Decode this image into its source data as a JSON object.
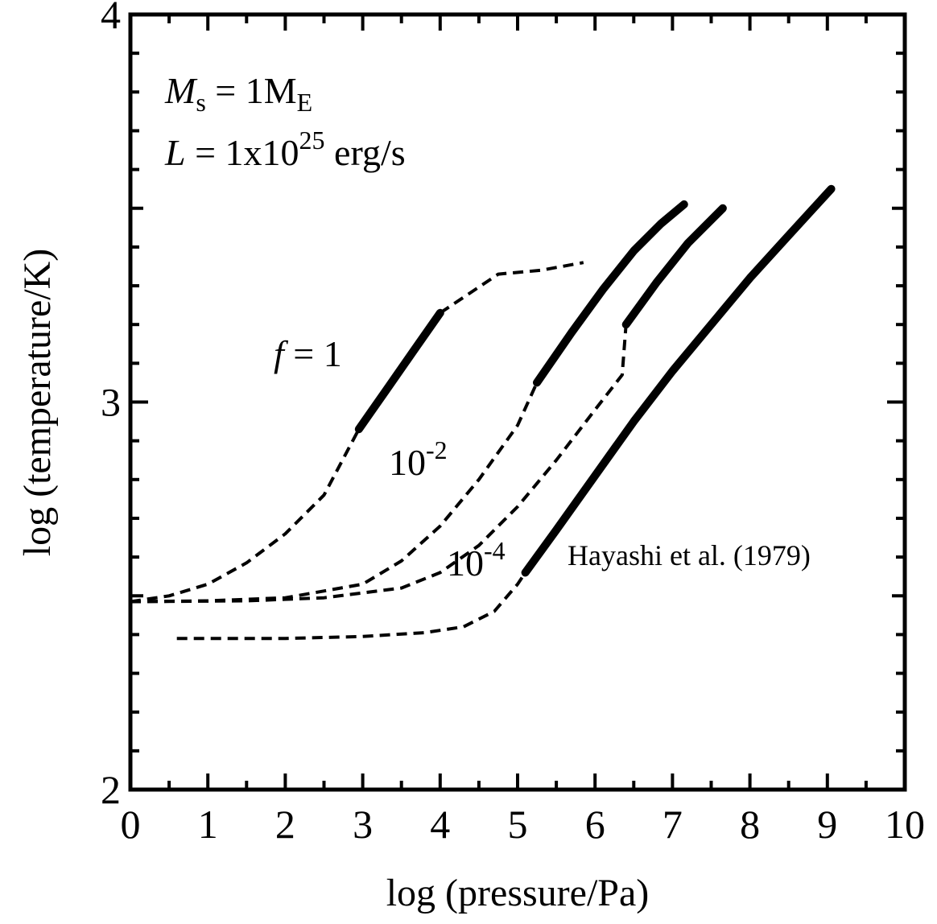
{
  "chart_data": {
    "type": "line",
    "xlabel": "log (pressure/Pa)",
    "ylabel": "log (temperature/K)",
    "xlim": [
      0,
      10
    ],
    "ylim": [
      2,
      4
    ],
    "x_ticks": [
      "0",
      "1",
      "2",
      "3",
      "4",
      "5",
      "6",
      "7",
      "8",
      "9",
      "10"
    ],
    "y_ticks": [
      "2",
      "3",
      "4"
    ],
    "grid": false,
    "annotation_params": {
      "line1": {
        "var": "M",
        "sub": "s",
        "eq": " = 1M",
        "unit_sub": "E"
      },
      "line2": {
        "var": "L",
        "eq": " = 1x10",
        "exp": "25",
        "unit": " erg/s"
      }
    },
    "curve_labels": [
      {
        "text": "f",
        "suffix": " = 1"
      },
      {
        "text": "10",
        "sup": "-2"
      },
      {
        "text": "10",
        "sup": "-4"
      }
    ],
    "reference_label": "Hayashi et al. (1979)",
    "series": [
      {
        "style": "dashed",
        "segment": "f=1 radiative",
        "points": [
          [
            0.0,
            2.485
          ],
          [
            0.5,
            2.5
          ],
          [
            1.0,
            2.53
          ],
          [
            1.5,
            2.585
          ],
          [
            2.0,
            2.66
          ],
          [
            2.5,
            2.76
          ],
          [
            2.95,
            2.93
          ]
        ]
      },
      {
        "style": "solid",
        "segment": "f=1 convective",
        "points": [
          [
            2.95,
            2.93
          ],
          [
            3.3,
            3.03
          ],
          [
            3.65,
            3.13
          ],
          [
            4.0,
            3.23
          ]
        ]
      },
      {
        "style": "dashed",
        "segment": "f=1 upper",
        "points": [
          [
            4.0,
            3.23
          ],
          [
            4.3,
            3.27
          ],
          [
            4.75,
            3.33
          ],
          [
            5.3,
            3.34
          ],
          [
            5.85,
            3.36
          ]
        ]
      },
      {
        "style": "dashed",
        "segment": "f=1e-2 radiative",
        "points": [
          [
            0.0,
            2.485
          ],
          [
            1.0,
            2.487
          ],
          [
            2.0,
            2.495
          ],
          [
            3.0,
            2.53
          ],
          [
            3.5,
            2.59
          ],
          [
            4.0,
            2.68
          ],
          [
            4.5,
            2.8
          ],
          [
            5.0,
            2.94
          ],
          [
            5.25,
            3.05
          ]
        ]
      },
      {
        "style": "solid",
        "segment": "f=1e-2 convective",
        "points": [
          [
            5.25,
            3.05
          ],
          [
            5.7,
            3.18
          ],
          [
            6.1,
            3.29
          ],
          [
            6.5,
            3.39
          ],
          [
            6.85,
            3.46
          ],
          [
            7.15,
            3.51
          ]
        ]
      },
      {
        "style": "dashed",
        "segment": "f=1e-4 radiative",
        "points": [
          [
            0.0,
            2.485
          ],
          [
            1.5,
            2.487
          ],
          [
            2.5,
            2.495
          ],
          [
            3.5,
            2.52
          ],
          [
            4.0,
            2.56
          ],
          [
            4.5,
            2.63
          ],
          [
            5.0,
            2.73
          ],
          [
            5.5,
            2.85
          ],
          [
            6.0,
            2.98
          ],
          [
            6.35,
            3.07
          ],
          [
            6.4,
            3.2
          ]
        ]
      },
      {
        "style": "solid",
        "segment": "f=1e-4 convective",
        "points": [
          [
            6.4,
            3.2
          ],
          [
            6.8,
            3.31
          ],
          [
            7.2,
            3.41
          ],
          [
            7.65,
            3.5
          ]
        ]
      },
      {
        "style": "dashed",
        "segment": "Hayashi radiative",
        "points": [
          [
            0.6,
            2.39
          ],
          [
            2.0,
            2.39
          ],
          [
            3.0,
            2.395
          ],
          [
            3.8,
            2.405
          ],
          [
            4.3,
            2.42
          ],
          [
            4.7,
            2.46
          ],
          [
            5.0,
            2.53
          ],
          [
            5.1,
            2.56
          ]
        ]
      },
      {
        "style": "solid",
        "segment": "Hayashi convective",
        "points": [
          [
            5.1,
            2.56
          ],
          [
            5.5,
            2.67
          ],
          [
            6.0,
            2.81
          ],
          [
            6.5,
            2.95
          ],
          [
            7.0,
            3.08
          ],
          [
            7.5,
            3.2
          ],
          [
            8.0,
            3.32
          ],
          [
            8.5,
            3.43
          ],
          [
            9.05,
            3.55
          ]
        ]
      }
    ]
  }
}
